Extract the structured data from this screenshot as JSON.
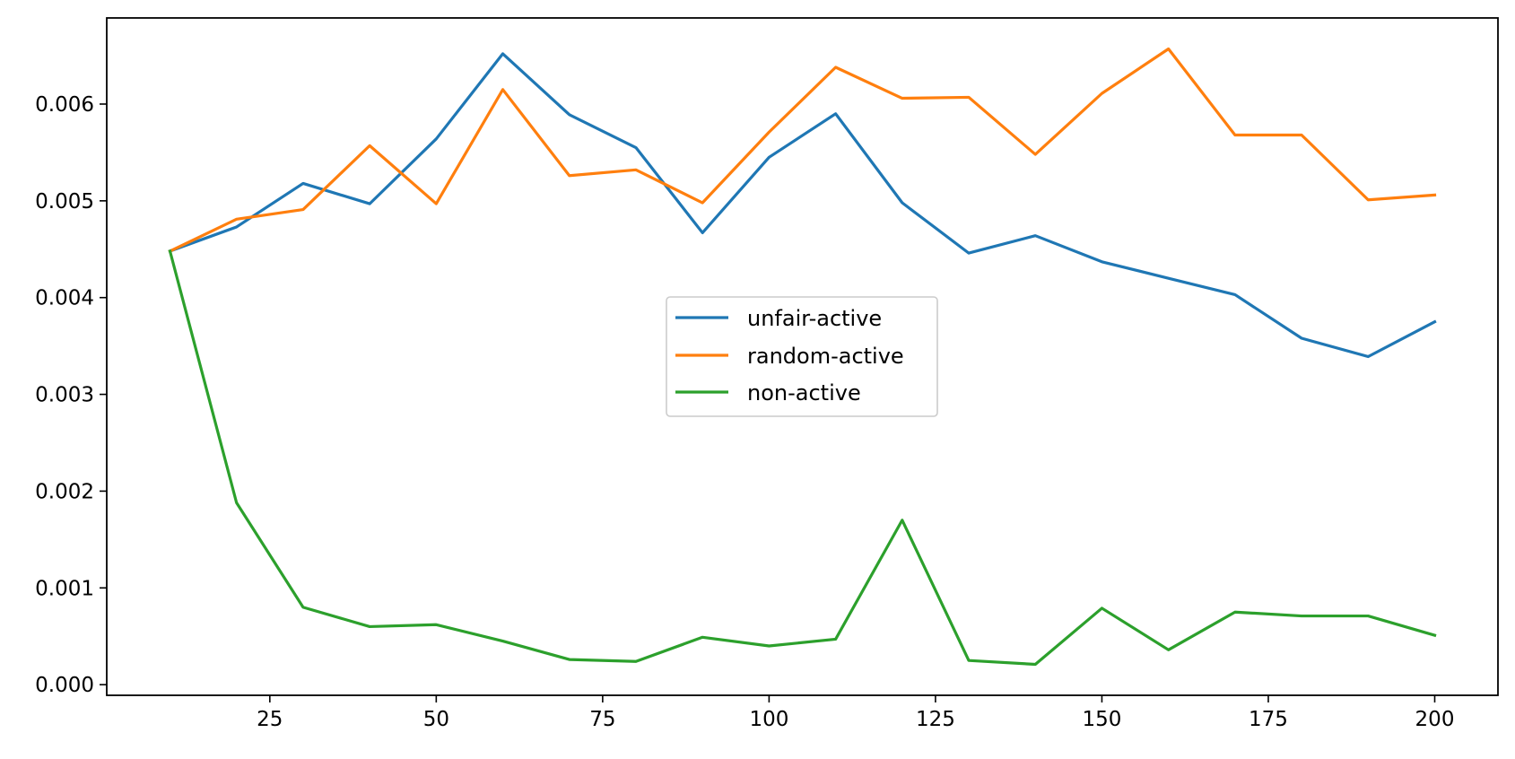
{
  "chart_data": {
    "type": "line",
    "title": "",
    "xlabel": "",
    "ylabel": "",
    "xlim": [
      0.5,
      209.5
    ],
    "ylim": [
      -0.00011,
      0.00689
    ],
    "xticks": [
      25,
      50,
      75,
      100,
      125,
      150,
      175,
      200
    ],
    "xtick_labels": [
      "25",
      "50",
      "75",
      "100",
      "125",
      "150",
      "175",
      "200"
    ],
    "yticks": [
      0,
      0.001,
      0.002,
      0.003,
      0.004,
      0.005,
      0.006
    ],
    "ytick_labels": [
      "0.000",
      "0.001",
      "0.002",
      "0.003",
      "0.004",
      "0.005",
      "0.006"
    ],
    "grid": false,
    "legend_position": "center",
    "x": [
      10,
      20,
      30,
      40,
      50,
      60,
      70,
      80,
      90,
      100,
      110,
      120,
      130,
      140,
      150,
      160,
      170,
      180,
      190,
      200
    ],
    "series": [
      {
        "name": "unfair-active",
        "color": "#1f77b4",
        "values": [
          0.00448,
          0.00473,
          0.00518,
          0.00497,
          0.00564,
          0.00652,
          0.00589,
          0.00555,
          0.00467,
          0.00545,
          0.0059,
          0.00498,
          0.00446,
          0.00464,
          0.00437,
          0.0042,
          0.00403,
          0.00358,
          0.00339,
          0.00375
        ]
      },
      {
        "name": "random-active",
        "color": "#ff7f0e",
        "values": [
          0.00448,
          0.00481,
          0.00491,
          0.00557,
          0.00497,
          0.00615,
          0.00526,
          0.00532,
          0.00498,
          0.00571,
          0.00638,
          0.00606,
          0.00607,
          0.00548,
          0.00611,
          0.00657,
          0.00568,
          0.00568,
          0.00501,
          0.00506
        ]
      },
      {
        "name": "non-active",
        "color": "#2ca02c",
        "values": [
          0.00448,
          0.00188,
          0.0008,
          0.0006,
          0.00062,
          0.00045,
          0.00026,
          0.00024,
          0.00049,
          0.0004,
          0.00047,
          0.0017,
          0.00025,
          0.00021,
          0.00079,
          0.00036,
          0.00075,
          0.00071,
          0.00071,
          0.00051
        ]
      }
    ]
  }
}
